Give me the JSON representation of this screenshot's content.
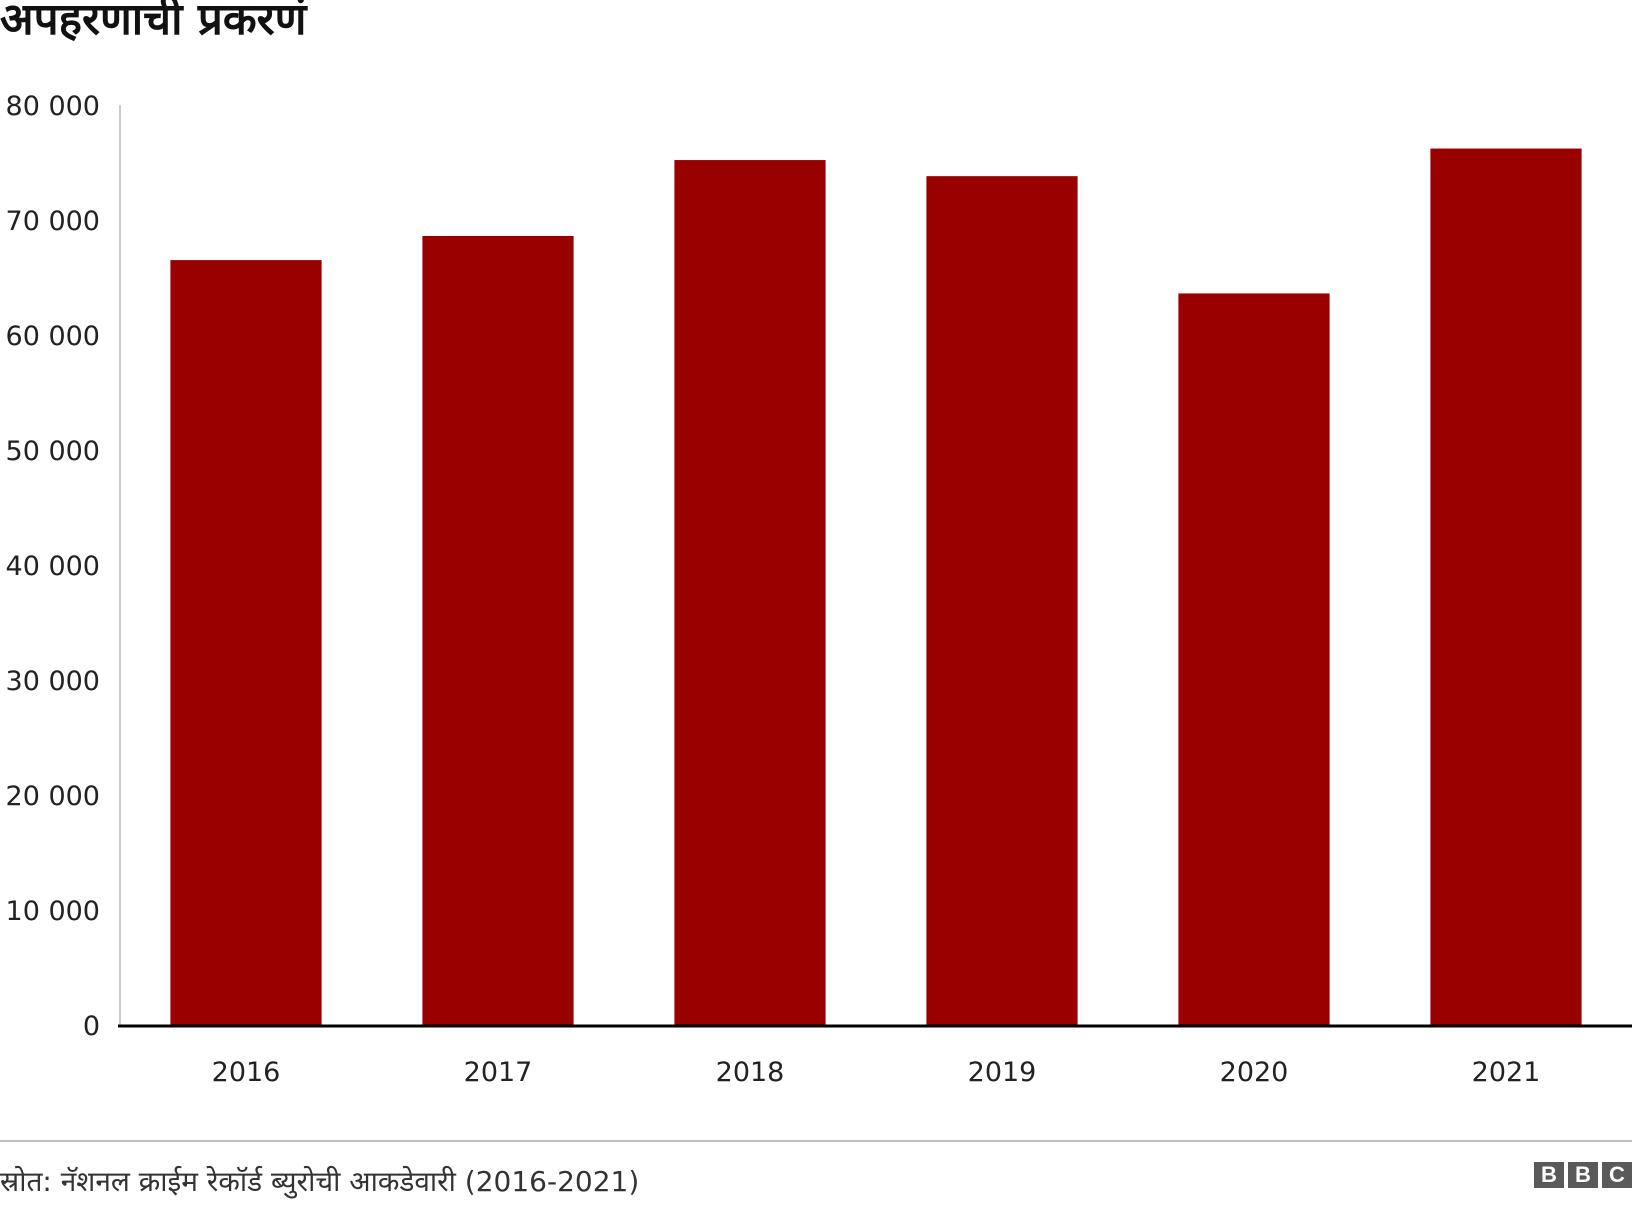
{
  "title": "अपहरणाची प्रकरणं",
  "source": "स्रोत: नॅशनल क्राईम रेकॉर्ड ब्युरोची आकडेवारी (2016-2021)",
  "logo": [
    "B",
    "B",
    "C"
  ],
  "colors": {
    "bar": "#990000",
    "baseline": "#000000",
    "axis": "#cccccc"
  },
  "chart_data": {
    "type": "bar",
    "categories": [
      "2016",
      "2017",
      "2018",
      "2019",
      "2020",
      "2021"
    ],
    "values": [
      66600,
      68700,
      75300,
      73900,
      63700,
      76300
    ],
    "ylim": [
      0,
      80000
    ],
    "yticks": [
      0,
      10000,
      20000,
      30000,
      40000,
      50000,
      60000,
      70000,
      80000
    ],
    "ytick_labels": [
      "0",
      "10 000",
      "20 000",
      "30 000",
      "40 000",
      "50 000",
      "60 000",
      "70 000",
      "80 000"
    ],
    "grid": false,
    "legend": "none"
  }
}
